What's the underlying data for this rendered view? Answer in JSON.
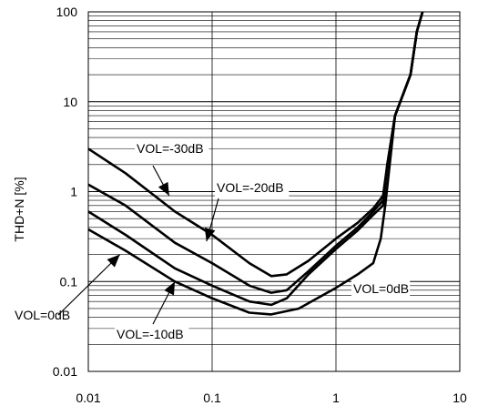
{
  "chart_data": {
    "type": "line",
    "title": "",
    "xlabel": "",
    "ylabel": "THD+N [%]",
    "xscale": "log",
    "yscale": "log",
    "xlim": [
      0.01,
      10
    ],
    "ylim": [
      0.01,
      100
    ],
    "grid": true,
    "x_ticks": [
      "0.01",
      "0.1",
      "1",
      "10"
    ],
    "y_ticks": [
      "0.01",
      "0.1",
      "1",
      "10",
      "100"
    ],
    "series": [
      {
        "name": "VOL=-30dB",
        "points": [
          [
            0.01,
            3.0
          ],
          [
            0.02,
            1.6
          ],
          [
            0.05,
            0.6
          ],
          [
            0.1,
            0.33
          ],
          [
            0.2,
            0.16
          ],
          [
            0.3,
            0.115
          ],
          [
            0.4,
            0.12
          ],
          [
            0.6,
            0.17
          ],
          [
            1.0,
            0.3
          ],
          [
            1.5,
            0.45
          ],
          [
            2.0,
            0.65
          ],
          [
            2.4,
            0.9
          ],
          [
            2.6,
            2.0
          ],
          [
            3.0,
            7.0
          ],
          [
            4.0,
            20
          ],
          [
            4.5,
            60
          ],
          [
            5.0,
            100
          ]
        ]
      },
      {
        "name": "VOL=-20dB",
        "points": [
          [
            0.01,
            1.2
          ],
          [
            0.02,
            0.7
          ],
          [
            0.05,
            0.27
          ],
          [
            0.1,
            0.16
          ],
          [
            0.2,
            0.09
          ],
          [
            0.3,
            0.075
          ],
          [
            0.4,
            0.08
          ],
          [
            0.6,
            0.13
          ],
          [
            1.0,
            0.25
          ],
          [
            1.5,
            0.4
          ],
          [
            2.0,
            0.6
          ],
          [
            2.4,
            0.8
          ],
          [
            2.6,
            2.0
          ],
          [
            3.0,
            7.0
          ],
          [
            4.0,
            20
          ],
          [
            4.5,
            60
          ],
          [
            5.0,
            100
          ]
        ]
      },
      {
        "name": "VOL=-10dB",
        "points": [
          [
            0.01,
            0.6
          ],
          [
            0.02,
            0.33
          ],
          [
            0.05,
            0.14
          ],
          [
            0.1,
            0.09
          ],
          [
            0.2,
            0.06
          ],
          [
            0.3,
            0.055
          ],
          [
            0.4,
            0.065
          ],
          [
            0.6,
            0.12
          ],
          [
            1.0,
            0.23
          ],
          [
            1.5,
            0.37
          ],
          [
            2.0,
            0.55
          ],
          [
            2.4,
            0.7
          ],
          [
            2.6,
            2.0
          ],
          [
            3.0,
            7.0
          ],
          [
            4.0,
            20
          ],
          [
            4.5,
            60
          ],
          [
            5.0,
            100
          ]
        ]
      },
      {
        "name": "VOL=0dB",
        "points": [
          [
            0.01,
            0.38
          ],
          [
            0.02,
            0.22
          ],
          [
            0.05,
            0.1
          ],
          [
            0.1,
            0.065
          ],
          [
            0.2,
            0.045
          ],
          [
            0.3,
            0.043
          ],
          [
            0.5,
            0.05
          ],
          [
            1.0,
            0.085
          ],
          [
            1.5,
            0.12
          ],
          [
            2.0,
            0.16
          ],
          [
            2.3,
            0.3
          ],
          [
            2.5,
            0.7
          ],
          [
            3.0,
            7.0
          ],
          [
            4.0,
            20
          ],
          [
            4.5,
            60
          ],
          [
            5.0,
            100
          ]
        ]
      }
    ],
    "annotations": [
      {
        "text": "VOL=-30dB",
        "target_x": 0.045,
        "target_y": 0.9
      },
      {
        "text": "VOL=-20dB",
        "target_x": 0.09,
        "target_y": 0.28
      },
      {
        "text": "VOL=-10dB",
        "target_x": 0.05,
        "target_y": 0.1
      },
      {
        "text": "VOL=0dB",
        "target_x": 0.018,
        "target_y": 0.2
      },
      {
        "text": "VOL=0dB",
        "target_x": 1.5,
        "target_y": 0.12
      }
    ]
  }
}
